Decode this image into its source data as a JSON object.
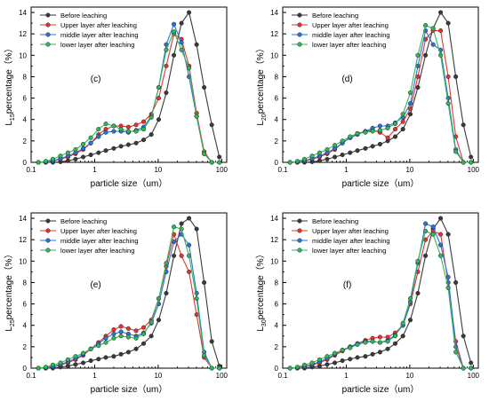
{
  "colors": {
    "Before leaching": "#3a3a3a",
    "Upper layer after leaching": "#e8312b",
    "middle layer after leaching": "#2a73d6",
    "lower layer after leaching": "#2fb85a"
  },
  "chart_data": [
    {
      "type": "line",
      "panel_label": "(c)",
      "xlabel": "particle size（um）",
      "ylabel_main": "L",
      "ylabel_sub": "15",
      "ylabel_rest": "percentage（%）",
      "x_scale": "log",
      "xlim": [
        0.1,
        120
      ],
      "ylim": [
        0,
        14.5
      ],
      "x_ticks": [
        0.1,
        1,
        10,
        100
      ],
      "x_tick_labels": [
        "0.1",
        "1",
        "10",
        "100"
      ],
      "y_ticks": [
        0,
        2,
        4,
        6,
        8,
        10,
        12,
        14
      ],
      "y_tick_labels": [
        "0",
        "2",
        "4",
        "6",
        "8",
        "10",
        "12",
        "14"
      ],
      "legend_position": "top-left",
      "grid": false,
      "x": [
        0.13,
        0.17,
        0.22,
        0.29,
        0.38,
        0.5,
        0.66,
        0.87,
        1.15,
        1.5,
        2.0,
        2.6,
        3.4,
        4.5,
        5.9,
        7.8,
        10.2,
        13.4,
        17.7,
        23.3,
        30.6,
        40.3,
        53,
        69.8,
        91.8
      ],
      "series": [
        {
          "name": "Before leaching",
          "values": [
            0,
            0,
            0,
            0.05,
            0.15,
            0.3,
            0.5,
            0.7,
            0.9,
            1.1,
            1.3,
            1.5,
            1.65,
            1.8,
            2.1,
            2.6,
            4.0,
            6.5,
            10.0,
            13.0,
            14.0,
            11.0,
            7.0,
            3.5,
            0.5
          ]
        },
        {
          "name": "Upper layer after leaching",
          "values": [
            0,
            0,
            0.1,
            0.3,
            0.5,
            0.8,
            1.2,
            1.8,
            2.6,
            3.1,
            3.4,
            3.4,
            3.3,
            3.5,
            3.8,
            4.5,
            6.0,
            9.0,
            12.0,
            11.5,
            9.0,
            4.6,
            1.0,
            0,
            0
          ]
        },
        {
          "name": "middle layer after leaching",
          "values": [
            0,
            0.05,
            0.15,
            0.35,
            0.6,
            0.9,
            1.3,
            1.8,
            2.4,
            2.8,
            2.9,
            2.9,
            2.8,
            3.0,
            3.3,
            4.3,
            7.0,
            11.0,
            12.9,
            11.2,
            8.0,
            4.3,
            0.8,
            0,
            0
          ]
        },
        {
          "name": "lower layer after leaching",
          "values": [
            0,
            0.1,
            0.3,
            0.6,
            0.9,
            1.2,
            1.7,
            2.3,
            3.1,
            3.6,
            3.4,
            3.1,
            2.9,
            2.9,
            3.1,
            4.2,
            7.0,
            10.5,
            12.2,
            10.5,
            8.8,
            4.3,
            0.8,
            0,
            0
          ]
        }
      ]
    },
    {
      "type": "line",
      "panel_label": "(d)",
      "xlabel": "particle size（um）",
      "ylabel_main": "L",
      "ylabel_sub": "20",
      "ylabel_rest": "percentage（%）",
      "x_scale": "log",
      "xlim": [
        0.1,
        120
      ],
      "ylim": [
        0,
        14.5
      ],
      "x_ticks": [
        0.1,
        1,
        10,
        100
      ],
      "x_tick_labels": [
        "0.1",
        "1",
        "10",
        "100"
      ],
      "y_ticks": [
        0,
        2,
        4,
        6,
        8,
        10,
        12,
        14
      ],
      "y_tick_labels": [
        "0",
        "2",
        "4",
        "6",
        "8",
        "10",
        "12",
        "14"
      ],
      "legend_position": "top-left",
      "grid": false,
      "x": [
        0.13,
        0.17,
        0.22,
        0.29,
        0.38,
        0.5,
        0.66,
        0.87,
        1.15,
        1.5,
        2.0,
        2.6,
        3.4,
        4.5,
        5.9,
        7.8,
        10.2,
        13.4,
        17.7,
        23.3,
        30.6,
        40.3,
        53,
        69.8,
        91.8
      ],
      "series": [
        {
          "name": "Before leaching",
          "values": [
            0,
            0,
            0,
            0.05,
            0.15,
            0.3,
            0.5,
            0.7,
            0.9,
            1.1,
            1.3,
            1.5,
            1.7,
            2.0,
            2.4,
            3.1,
            4.5,
            7.0,
            10.0,
            12.5,
            14.0,
            13.0,
            8.0,
            3.5,
            0.5
          ]
        },
        {
          "name": "Upper layer after leaching",
          "values": [
            0,
            0,
            0.1,
            0.3,
            0.5,
            0.8,
            1.2,
            1.8,
            2.3,
            2.7,
            2.9,
            3.0,
            2.8,
            2.3,
            3.1,
            3.8,
            5.0,
            8.0,
            11.5,
            12.3,
            12.3,
            8.0,
            2.4,
            0,
            0
          ]
        },
        {
          "name": "middle layer after leaching",
          "values": [
            0,
            0.05,
            0.15,
            0.35,
            0.6,
            0.9,
            1.3,
            1.8,
            2.3,
            2.6,
            2.9,
            3.2,
            3.4,
            3.4,
            3.7,
            4.2,
            5.5,
            9.0,
            12.3,
            11.0,
            10.5,
            6.0,
            1.2,
            0,
            0
          ]
        },
        {
          "name": "lower layer after leaching",
          "values": [
            0,
            0.1,
            0.3,
            0.6,
            0.9,
            1.2,
            1.6,
            2.0,
            2.4,
            2.7,
            2.8,
            2.9,
            3.0,
            3.2,
            3.6,
            4.5,
            6.5,
            10.0,
            12.8,
            12.5,
            10.0,
            5.5,
            1.0,
            0,
            0
          ]
        }
      ]
    },
    {
      "type": "line",
      "panel_label": "(e)",
      "xlabel": "particle size（um）",
      "ylabel_main": "L",
      "ylabel_sub": "25",
      "ylabel_rest": "percentage（%）",
      "x_scale": "log",
      "xlim": [
        0.1,
        120
      ],
      "ylim": [
        0,
        14.5
      ],
      "x_ticks": [
        0.1,
        1,
        10,
        100
      ],
      "x_tick_labels": [
        "0.1",
        "1",
        "10",
        "100"
      ],
      "y_ticks": [
        0,
        2,
        4,
        6,
        8,
        10,
        12,
        14
      ],
      "y_tick_labels": [
        "0",
        "2",
        "4",
        "6",
        "8",
        "10",
        "12",
        "14"
      ],
      "legend_position": "top-left",
      "grid": false,
      "x": [
        0.13,
        0.17,
        0.22,
        0.29,
        0.38,
        0.5,
        0.66,
        0.87,
        1.15,
        1.5,
        2.0,
        2.6,
        3.4,
        4.5,
        5.9,
        7.8,
        10.2,
        13.4,
        17.7,
        23.3,
        30.6,
        40.3,
        53,
        69.8,
        91.8
      ],
      "series": [
        {
          "name": "Before leaching",
          "values": [
            0,
            0,
            0,
            0.1,
            0.2,
            0.35,
            0.5,
            0.7,
            0.85,
            1.0,
            1.1,
            1.3,
            1.5,
            1.8,
            2.3,
            3.0,
            4.5,
            7.0,
            10.5,
            13.5,
            14.0,
            13.0,
            8.0,
            2.5,
            0.2
          ]
        },
        {
          "name": "Upper layer after leaching",
          "values": [
            0,
            0,
            0.1,
            0.3,
            0.5,
            0.8,
            1.2,
            1.8,
            2.4,
            3.0,
            3.6,
            3.9,
            3.7,
            3.5,
            3.8,
            4.5,
            6.5,
            9.5,
            12.5,
            10.5,
            9.0,
            5.0,
            1.0,
            0,
            0
          ]
        },
        {
          "name": "middle layer after leaching",
          "values": [
            0,
            0.05,
            0.15,
            0.35,
            0.6,
            0.9,
            1.3,
            1.8,
            2.3,
            2.8,
            3.2,
            3.4,
            3.2,
            3.0,
            3.3,
            4.2,
            6.0,
            9.0,
            11.8,
            12.5,
            11.5,
            7.0,
            1.5,
            0,
            0
          ]
        },
        {
          "name": "lower layer after leaching",
          "values": [
            0,
            0.1,
            0.3,
            0.5,
            0.8,
            1.1,
            1.4,
            1.8,
            2.1,
            2.4,
            2.8,
            3.0,
            2.9,
            2.8,
            3.2,
            4.3,
            6.5,
            9.8,
            13.2,
            13.0,
            10.5,
            6.5,
            1.2,
            0,
            0
          ]
        }
      ]
    },
    {
      "type": "line",
      "panel_label": "(f)",
      "xlabel": "particle size（um）",
      "ylabel_main": "L",
      "ylabel_sub": "30",
      "ylabel_rest": "percentage（%）",
      "x_scale": "log",
      "xlim": [
        0.1,
        120
      ],
      "ylim": [
        0,
        14.5
      ],
      "x_ticks": [
        0.1,
        1,
        10,
        100
      ],
      "x_tick_labels": [
        "0.1",
        "1",
        "10",
        "100"
      ],
      "y_ticks": [
        0,
        2,
        4,
        6,
        8,
        10,
        12,
        14
      ],
      "y_tick_labels": [
        "0",
        "2",
        "4",
        "6",
        "8",
        "10",
        "12",
        "14"
      ],
      "legend_position": "top-left",
      "grid": false,
      "x": [
        0.13,
        0.17,
        0.22,
        0.29,
        0.38,
        0.5,
        0.66,
        0.87,
        1.15,
        1.5,
        2.0,
        2.6,
        3.4,
        4.5,
        5.9,
        7.8,
        10.2,
        13.4,
        17.7,
        23.3,
        30.6,
        40.3,
        53,
        69.8,
        91.8
      ],
      "series": [
        {
          "name": "Before leaching",
          "values": [
            0,
            0,
            0,
            0.1,
            0.2,
            0.35,
            0.5,
            0.7,
            0.85,
            1.0,
            1.1,
            1.3,
            1.5,
            1.8,
            2.3,
            3.0,
            4.5,
            7.0,
            10.5,
            13.0,
            14.0,
            12.5,
            8.0,
            3.0,
            0.5
          ]
        },
        {
          "name": "Upper layer after leaching",
          "values": [
            0,
            0,
            0.1,
            0.3,
            0.5,
            0.8,
            1.2,
            1.6,
            2.0,
            2.3,
            2.6,
            2.8,
            2.9,
            2.9,
            3.3,
            4.0,
            6.0,
            9.0,
            12.0,
            12.8,
            12.5,
            8.0,
            2.5,
            0,
            0
          ]
        },
        {
          "name": "middle layer after leaching",
          "values": [
            0,
            0.05,
            0.15,
            0.35,
            0.6,
            0.9,
            1.3,
            1.7,
            2.0,
            2.3,
            2.5,
            2.5,
            2.4,
            2.6,
            3.1,
            4.0,
            6.2,
            9.8,
            13.5,
            13.2,
            11.5,
            8.5,
            2.0,
            0,
            0
          ]
        },
        {
          "name": "lower layer after leaching",
          "values": [
            0,
            0.1,
            0.3,
            0.5,
            0.8,
            1.1,
            1.4,
            1.7,
            1.9,
            2.2,
            2.4,
            2.5,
            2.4,
            2.5,
            3.0,
            4.2,
            6.5,
            10.0,
            12.8,
            12.5,
            10.5,
            7.5,
            1.5,
            0,
            0
          ]
        }
      ]
    }
  ]
}
